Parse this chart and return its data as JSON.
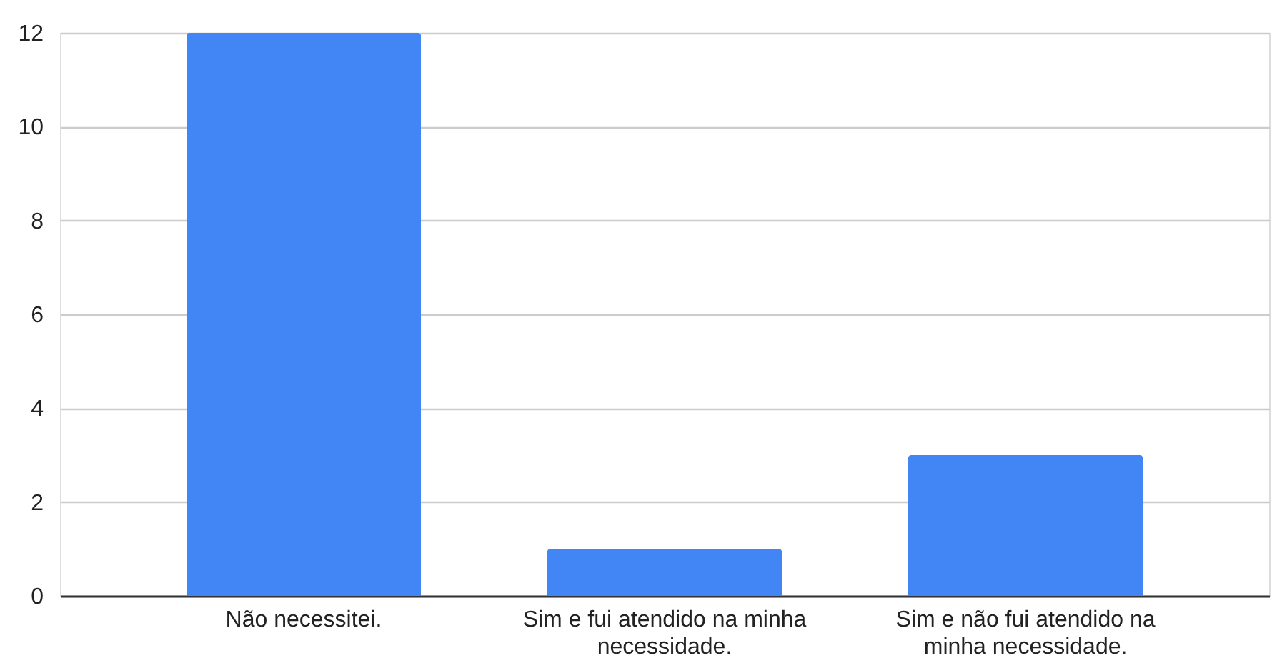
{
  "chart_data": {
    "type": "bar",
    "categories": [
      "Não necessitei.",
      "Sim e fui atendido na minha necessidade.",
      "Sim e não fui atendido na minha necessidade."
    ],
    "values": [
      12,
      1,
      3
    ],
    "color": "#4285f4",
    "ylim": [
      0,
      12
    ],
    "yticks": [
      0,
      2,
      4,
      6,
      8,
      10,
      12
    ],
    "grid": "y"
  }
}
